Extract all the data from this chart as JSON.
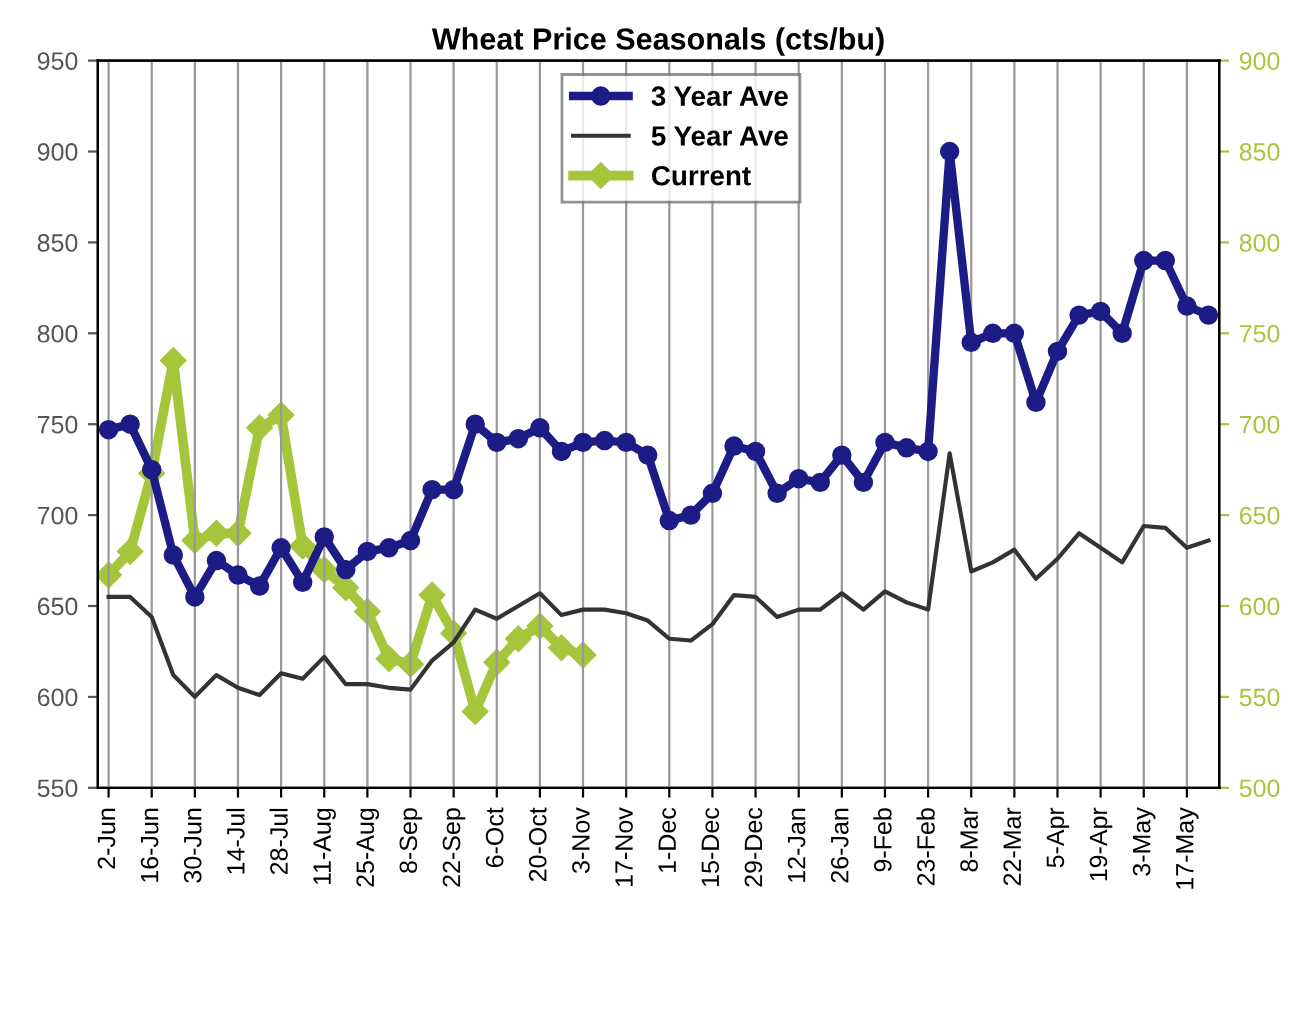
{
  "chart_data": {
    "type": "line",
    "title": "Wheat Price Seasonals (cts/bu)",
    "categories": [
      "2-Jun",
      null,
      "16-Jun",
      null,
      "30-Jun",
      null,
      "14-Jul",
      null,
      "28-Jul",
      null,
      "11-Aug",
      null,
      "25-Aug",
      null,
      "8-Sep",
      null,
      "22-Sep",
      null,
      "6-Oct",
      null,
      "20-Oct",
      null,
      "3-Nov",
      null,
      "17-Nov",
      null,
      "1-Dec",
      null,
      "15-Dec",
      null,
      "29-Dec",
      null,
      "12-Jan",
      null,
      "26-Jan",
      null,
      "9-Feb",
      null,
      "23-Feb",
      null,
      "8-Mar",
      null,
      "22-Mar",
      null,
      "5-Apr",
      null,
      "19-Apr",
      null,
      "3-May",
      null,
      "17-May",
      null
    ],
    "series": [
      {
        "name": "3 Year Ave",
        "color": "#1c1c86",
        "marker": "circle",
        "values": [
          747,
          750,
          725,
          678,
          655,
          675,
          667,
          661,
          682,
          663,
          688,
          670,
          680,
          682,
          686,
          714,
          714,
          750,
          740,
          742,
          748,
          735,
          740,
          741,
          740,
          733,
          697,
          700,
          712,
          738,
          735,
          712,
          720,
          718,
          733,
          718,
          740,
          737,
          735,
          900,
          795,
          800,
          800,
          762,
          790,
          810,
          812,
          800,
          840,
          840,
          815,
          810
        ]
      },
      {
        "name": "5 Year Ave",
        "color": "#333333",
        "marker": "none",
        "values": [
          655,
          655,
          644,
          612,
          600,
          612,
          605,
          601,
          613,
          610,
          622,
          607,
          607,
          605,
          604,
          620,
          630,
          648,
          643,
          650,
          657,
          645,
          648,
          648,
          646,
          642,
          632,
          631,
          640,
          656,
          655,
          644,
          648,
          648,
          657,
          648,
          658,
          652,
          648,
          734,
          669,
          674,
          681,
          665,
          676,
          690,
          682,
          674,
          694,
          693,
          682,
          686
        ]
      },
      {
        "name": "Current",
        "color": "#a5c63b",
        "marker": "diamond",
        "axis": "y2",
        "values": [
          617,
          630,
          673,
          735,
          636,
          640,
          640,
          698,
          705,
          633,
          620,
          610,
          597,
          571,
          568,
          606,
          585,
          542,
          569,
          582,
          589,
          577,
          573,
          null,
          null,
          null,
          null,
          null,
          null,
          null,
          null,
          null,
          null,
          null,
          null,
          null,
          null,
          null,
          null,
          null,
          null,
          null,
          null,
          null,
          null,
          null,
          null,
          null,
          null,
          null,
          null,
          null
        ]
      }
    ],
    "ylim": [
      550,
      950
    ],
    "yticks": [
      550,
      600,
      650,
      700,
      750,
      800,
      850,
      900,
      950
    ],
    "y2lim": [
      500,
      900
    ],
    "y2ticks": [
      500,
      550,
      600,
      650,
      700,
      750,
      800,
      850,
      900
    ],
    "grid": "x",
    "legend": "top"
  }
}
